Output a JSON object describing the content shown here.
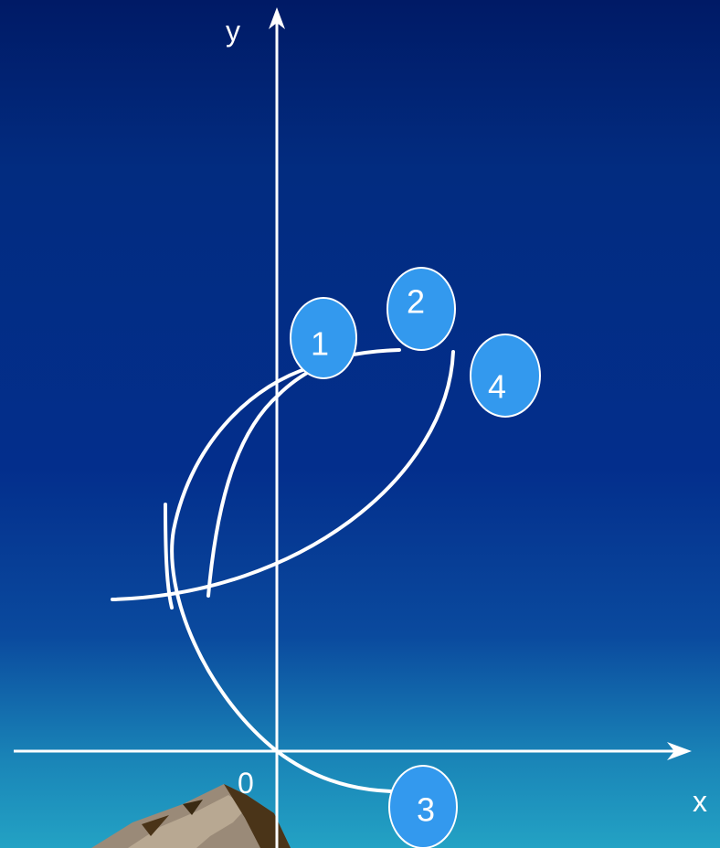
{
  "axes": {
    "x_label": "x",
    "y_label": "y",
    "origin_label": "0"
  },
  "badges": [
    {
      "label": "1"
    },
    {
      "label": "2"
    },
    {
      "label": "3"
    },
    {
      "label": "4"
    }
  ],
  "colors": {
    "background_top": "#001a66",
    "background_bottom": "#23a2c4",
    "badge_fill": "#3399ee",
    "line": "#ffffff"
  }
}
